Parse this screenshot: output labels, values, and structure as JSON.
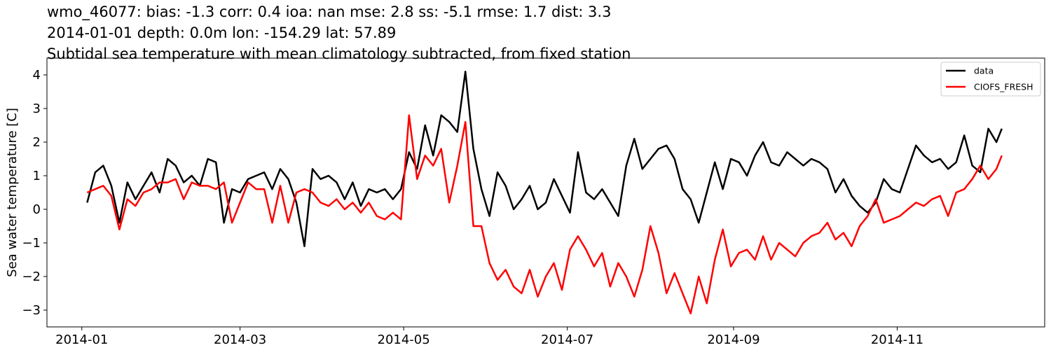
{
  "chart_data": {
    "type": "line",
    "title": [
      "wmo_46077: bias: -1.3  corr: 0.4  ioa: nan  mse: 2.8  ss: -5.1  rmse: 1.7  dist: 3.3",
      "2014-01-01 depth: 0.0m lon: -154.29 lat: 57.89",
      "Subtidal sea temperature with mean climatology subtracted, from fixed station"
    ],
    "xlabel": "",
    "ylabel": "Sea water temperature [C]",
    "xlim": [
      "2013-12-19",
      "2014-12-26"
    ],
    "ylim": [
      -3.5,
      4.5
    ],
    "xticks": [
      "2014-01",
      "2014-03",
      "2014-05",
      "2014-07",
      "2014-09",
      "2014-11"
    ],
    "yticks": [
      -3,
      -2,
      -1,
      0,
      1,
      2,
      3,
      4
    ],
    "grid": false,
    "legend": {
      "position": "top-right"
    },
    "series": [
      {
        "name": "data",
        "color": "#000000",
        "x": [
          "2014-01-03",
          "2014-01-06",
          "2014-01-09",
          "2014-01-12",
          "2014-01-15",
          "2014-01-18",
          "2014-01-21",
          "2014-01-24",
          "2014-01-27",
          "2014-01-30",
          "2014-02-02",
          "2014-02-05",
          "2014-02-08",
          "2014-02-11",
          "2014-02-14",
          "2014-02-17",
          "2014-02-20",
          "2014-02-23",
          "2014-02-26",
          "2014-03-01",
          "2014-03-04",
          "2014-03-07",
          "2014-03-10",
          "2014-03-13",
          "2014-03-16",
          "2014-03-19",
          "2014-03-22",
          "2014-03-25",
          "2014-03-28",
          "2014-03-31",
          "2014-04-03",
          "2014-04-06",
          "2014-04-09",
          "2014-04-12",
          "2014-04-15",
          "2014-04-18",
          "2014-04-21",
          "2014-04-24",
          "2014-04-27",
          "2014-04-30",
          "2014-05-03",
          "2014-05-06",
          "2014-05-09",
          "2014-05-12",
          "2014-05-15",
          "2014-05-18",
          "2014-05-21",
          "2014-05-24",
          "2014-05-27",
          "2014-05-30",
          "2014-06-02",
          "2014-06-05",
          "2014-06-08",
          "2014-06-11",
          "2014-06-14",
          "2014-06-17",
          "2014-06-20",
          "2014-06-23",
          "2014-06-26",
          "2014-06-29",
          "2014-07-02",
          "2014-07-05",
          "2014-07-08",
          "2014-07-11",
          "2014-07-14",
          "2014-07-17",
          "2014-07-20",
          "2014-07-23",
          "2014-07-26",
          "2014-07-29",
          "2014-08-01",
          "2014-08-04",
          "2014-08-07",
          "2014-08-10",
          "2014-08-13",
          "2014-08-16",
          "2014-08-19",
          "2014-08-22",
          "2014-08-25",
          "2014-08-28",
          "2014-08-31",
          "2014-09-03",
          "2014-09-06",
          "2014-09-09",
          "2014-09-12",
          "2014-09-15",
          "2014-09-18",
          "2014-09-21",
          "2014-09-24",
          "2014-09-27",
          "2014-09-30",
          "2014-10-03",
          "2014-10-06",
          "2014-10-09",
          "2014-10-12",
          "2014-10-15",
          "2014-10-18",
          "2014-10-21",
          "2014-10-24",
          "2014-10-27",
          "2014-10-30",
          "2014-11-02",
          "2014-11-05",
          "2014-11-08",
          "2014-11-11",
          "2014-11-14",
          "2014-11-17",
          "2014-11-20",
          "2014-11-23",
          "2014-11-26",
          "2014-11-29",
          "2014-12-02",
          "2014-12-05",
          "2014-12-08",
          "2014-12-10"
        ],
        "y": [
          0.2,
          1.1,
          1.3,
          0.7,
          -0.4,
          0.8,
          0.3,
          0.7,
          1.1,
          0.5,
          1.5,
          1.3,
          0.8,
          1.0,
          0.7,
          1.5,
          1.4,
          -0.4,
          0.6,
          0.5,
          0.9,
          1.0,
          1.1,
          0.6,
          1.2,
          0.9,
          0.2,
          -1.1,
          1.2,
          0.9,
          1.0,
          0.8,
          0.3,
          0.8,
          0.1,
          0.6,
          0.5,
          0.6,
          0.3,
          0.6,
          1.7,
          1.2,
          2.5,
          1.6,
          2.8,
          2.6,
          2.3,
          4.1,
          1.8,
          0.6,
          -0.2,
          1.1,
          0.7,
          0.0,
          0.3,
          0.7,
          0.0,
          0.2,
          0.9,
          0.4,
          -0.1,
          1.7,
          0.5,
          0.3,
          0.6,
          0.2,
          -0.2,
          1.3,
          2.1,
          1.2,
          1.5,
          1.8,
          1.9,
          1.5,
          0.6,
          0.3,
          -0.4,
          0.5,
          1.4,
          0.6,
          1.5,
          1.4,
          1.0,
          1.6,
          2.0,
          1.4,
          1.3,
          1.7,
          1.5,
          1.3,
          1.5,
          1.4,
          1.2,
          0.5,
          0.9,
          0.4,
          0.1,
          -0.1,
          0.2,
          0.9,
          0.6,
          0.5,
          1.2,
          1.9,
          1.6,
          1.4,
          1.5,
          1.2,
          1.4,
          2.2,
          1.3,
          1.1,
          2.4,
          2.0,
          2.4
        ]
      },
      {
        "name": "CIOFS_FRESH",
        "color": "#ff0000",
        "x": [
          "2014-01-03",
          "2014-01-06",
          "2014-01-09",
          "2014-01-12",
          "2014-01-15",
          "2014-01-18",
          "2014-01-21",
          "2014-01-24",
          "2014-01-27",
          "2014-01-30",
          "2014-02-02",
          "2014-02-05",
          "2014-02-08",
          "2014-02-11",
          "2014-02-14",
          "2014-02-17",
          "2014-02-20",
          "2014-02-23",
          "2014-02-26",
          "2014-03-01",
          "2014-03-04",
          "2014-03-07",
          "2014-03-10",
          "2014-03-13",
          "2014-03-16",
          "2014-03-19",
          "2014-03-22",
          "2014-03-25",
          "2014-03-28",
          "2014-03-31",
          "2014-04-03",
          "2014-04-06",
          "2014-04-09",
          "2014-04-12",
          "2014-04-15",
          "2014-04-18",
          "2014-04-21",
          "2014-04-24",
          "2014-04-27",
          "2014-04-30",
          "2014-05-03",
          "2014-05-06",
          "2014-05-09",
          "2014-05-12",
          "2014-05-15",
          "2014-05-18",
          "2014-05-21",
          "2014-05-24",
          "2014-05-27",
          "2014-05-30",
          "2014-06-02",
          "2014-06-05",
          "2014-06-08",
          "2014-06-11",
          "2014-06-14",
          "2014-06-17",
          "2014-06-20",
          "2014-06-23",
          "2014-06-26",
          "2014-06-29",
          "2014-07-02",
          "2014-07-05",
          "2014-07-08",
          "2014-07-11",
          "2014-07-14",
          "2014-07-17",
          "2014-07-20",
          "2014-07-23",
          "2014-07-26",
          "2014-07-29",
          "2014-08-01",
          "2014-08-04",
          "2014-08-07",
          "2014-08-10",
          "2014-08-13",
          "2014-08-16",
          "2014-08-19",
          "2014-08-22",
          "2014-08-25",
          "2014-08-28",
          "2014-08-31",
          "2014-09-03",
          "2014-09-06",
          "2014-09-09",
          "2014-09-12",
          "2014-09-15",
          "2014-09-18",
          "2014-09-21",
          "2014-09-24",
          "2014-09-27",
          "2014-09-30",
          "2014-10-03",
          "2014-10-06",
          "2014-10-09",
          "2014-10-12",
          "2014-10-15",
          "2014-10-18",
          "2014-10-21",
          "2014-10-24",
          "2014-10-27",
          "2014-10-30",
          "2014-11-02",
          "2014-11-05",
          "2014-11-08",
          "2014-11-11",
          "2014-11-14",
          "2014-11-17",
          "2014-11-20",
          "2014-11-23",
          "2014-11-26",
          "2014-11-29",
          "2014-12-02",
          "2014-12-05",
          "2014-12-08",
          "2014-12-10"
        ],
        "y": [
          0.5,
          0.6,
          0.7,
          0.4,
          -0.6,
          0.3,
          0.1,
          0.5,
          0.6,
          0.8,
          0.8,
          0.9,
          0.3,
          0.8,
          0.7,
          0.7,
          0.6,
          0.8,
          -0.4,
          0.2,
          0.8,
          0.6,
          0.6,
          -0.4,
          0.7,
          -0.4,
          0.5,
          0.6,
          0.5,
          0.2,
          0.1,
          0.3,
          0.0,
          0.2,
          -0.1,
          0.2,
          -0.2,
          -0.3,
          -0.1,
          -0.3,
          2.8,
          0.9,
          1.6,
          1.3,
          1.8,
          0.2,
          1.3,
          2.6,
          -0.5,
          -0.5,
          -1.6,
          -2.1,
          -1.8,
          -2.3,
          -2.5,
          -1.8,
          -2.6,
          -2.0,
          -1.6,
          -2.4,
          -1.2,
          -0.8,
          -1.2,
          -1.7,
          -1.3,
          -2.3,
          -1.6,
          -2.0,
          -2.6,
          -1.8,
          -0.5,
          -1.3,
          -2.5,
          -1.9,
          -2.5,
          -3.1,
          -2.0,
          -2.8,
          -1.5,
          -0.6,
          -1.7,
          -1.3,
          -1.2,
          -1.5,
          -0.8,
          -1.5,
          -1.0,
          -1.2,
          -1.4,
          -1.0,
          -0.8,
          -0.7,
          -0.4,
          -0.9,
          -0.7,
          -1.1,
          -0.5,
          -0.2,
          0.3,
          -0.4,
          -0.3,
          -0.2,
          0.0,
          0.2,
          0.1,
          0.3,
          0.4,
          -0.2,
          0.5,
          0.6,
          0.9,
          1.3,
          0.9,
          1.2,
          1.6
        ]
      }
    ]
  }
}
